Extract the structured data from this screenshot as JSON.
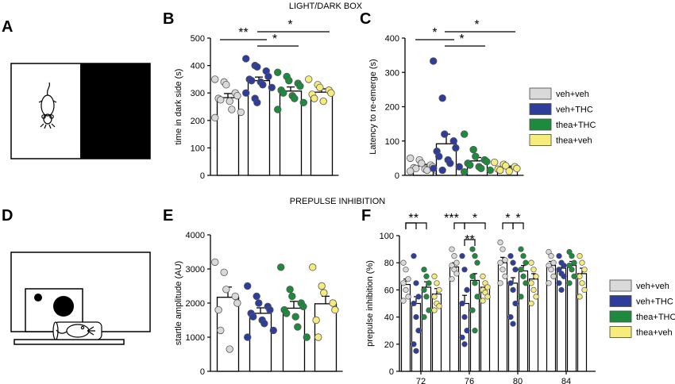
{
  "section_titles": {
    "top": "LIGHT/DARK BOX",
    "bottom": "PREPULSE INHIBITION"
  },
  "panel_labels": {
    "a": "A",
    "b": "B",
    "c": "C",
    "d": "D",
    "e": "E",
    "f": "F"
  },
  "colors": {
    "veh_veh": "#d9d9d9",
    "veh_thc": "#2e3c9c",
    "thea_thc": "#1d8a3e",
    "thea_veh": "#f5ec7d"
  },
  "legend_top": [
    "veh+veh",
    "veh+THC",
    "thea+THC",
    "thea+veh"
  ],
  "legend_bottom": [
    "veh+veh",
    "veh+THC",
    "thea+THC",
    "thea+veh"
  ],
  "chart_data": [
    {
      "panel": "B",
      "type": "bar",
      "ylabel": "time in dark side (s)",
      "ylim": [
        0,
        500
      ],
      "yticks": [
        "0",
        "100",
        "200",
        "300",
        "400",
        "500"
      ],
      "series": [
        {
          "name": "veh+veh",
          "color_key": "veh_veh",
          "mean": 283,
          "sem": 15,
          "points": [
            350,
            340,
            330,
            300,
            290,
            280,
            275,
            270,
            240,
            230,
            210
          ]
        },
        {
          "name": "veh+THC",
          "color_key": "veh_thc",
          "mean": 345,
          "sem": 13,
          "points": [
            425,
            400,
            395,
            380,
            360,
            350,
            345,
            340,
            330,
            320,
            300,
            280,
            265
          ]
        },
        {
          "name": "thea+THC",
          "color_key": "thea_thc",
          "mean": 307,
          "sem": 15,
          "points": [
            375,
            360,
            345,
            335,
            325,
            310,
            300,
            290,
            280,
            265,
            240
          ]
        },
        {
          "name": "thea+veh",
          "color_key": "thea_veh",
          "mean": 303,
          "sem": 12,
          "points": [
            350,
            330,
            320,
            310,
            300,
            295,
            280,
            270
          ]
        }
      ],
      "significance": [
        {
          "from": 0,
          "to": 1,
          "label": "**"
        },
        {
          "from": 1,
          "to": 2,
          "label": "*"
        },
        {
          "from": 1,
          "to": 3,
          "label": "*"
        }
      ]
    },
    {
      "panel": "C",
      "type": "bar",
      "ylabel": "Latency to re-emerge (s)",
      "ylim": [
        0,
        400
      ],
      "yticks": [
        "0",
        "100",
        "200",
        "300",
        "400"
      ],
      "series": [
        {
          "name": "veh+veh",
          "color_key": "veh_veh",
          "mean": 27,
          "sem": 5,
          "points": [
            50,
            45,
            35,
            30,
            25,
            22,
            20,
            18,
            15,
            15,
            12
          ]
        },
        {
          "name": "veh+THC",
          "color_key": "veh_thc",
          "mean": 92,
          "sem": 28,
          "points": [
            333,
            225,
            120,
            100,
            80,
            70,
            55,
            45,
            35,
            25,
            20,
            15
          ]
        },
        {
          "name": "thea+THC",
          "color_key": "thea_thc",
          "mean": 42,
          "sem": 10,
          "points": [
            120,
            75,
            55,
            45,
            40,
            35,
            30,
            25,
            20,
            15,
            10
          ]
        },
        {
          "name": "thea+veh",
          "color_key": "thea_veh",
          "mean": 23,
          "sem": 4,
          "points": [
            38,
            32,
            28,
            25,
            20,
            18,
            15,
            12
          ]
        }
      ],
      "significance": [
        {
          "from": 0,
          "to": 1,
          "label": "*"
        },
        {
          "from": 1,
          "to": 2,
          "label": "*"
        },
        {
          "from": 1,
          "to": 3,
          "label": "*"
        }
      ]
    },
    {
      "panel": "E",
      "type": "bar",
      "ylabel": "startle amplitude (AU)",
      "ylim": [
        0,
        4000
      ],
      "yticks": [
        "0",
        "1000",
        "2000",
        "3000",
        "4000"
      ],
      "series": [
        {
          "name": "veh+veh",
          "color_key": "veh_veh",
          "mean": 2170,
          "sem": 300,
          "points": [
            3200,
            2900,
            2400,
            2200,
            2000,
            1800,
            1200,
            650
          ]
        },
        {
          "name": "veh+THC",
          "color_key": "veh_thc",
          "mean": 1700,
          "sem": 160,
          "points": [
            2500,
            2200,
            2000,
            1900,
            1800,
            1700,
            1600,
            1500,
            1400,
            1200,
            1000
          ]
        },
        {
          "name": "thea+THC",
          "color_key": "thea_thc",
          "mean": 1850,
          "sem": 200,
          "points": [
            3050,
            2400,
            2200,
            2000,
            1900,
            1800,
            1700,
            1600,
            1300,
            1000
          ]
        },
        {
          "name": "thea+veh",
          "color_key": "thea_veh",
          "mean": 1980,
          "sem": 220,
          "points": [
            3050,
            2500,
            2300,
            2000,
            1800,
            1500,
            1000
          ]
        }
      ]
    },
    {
      "panel": "F",
      "type": "bar",
      "xlabel_ticks": [
        "72",
        "76",
        "80",
        "84"
      ],
      "ylabel": "prepulse inhibition (%)",
      "ylim": [
        0,
        100
      ],
      "yticks": [
        "0",
        "20",
        "40",
        "60",
        "80",
        "100"
      ],
      "groups": [
        {
          "x": "72",
          "means": [
            64,
            50,
            62,
            57
          ],
          "sems": [
            4,
            5,
            4,
            4
          ],
          "points": [
            [
              80,
              75,
              68,
              65,
              60,
              55,
              52
            ],
            [
              85,
              65,
              55,
              50,
              40,
              30,
              20,
              15
            ],
            [
              75,
              70,
              65,
              60,
              55,
              45,
              40
            ],
            [
              70,
              65,
              60,
              55,
              50,
              48,
              45
            ]
          ]
        },
        {
          "x": "76",
          "means": [
            77,
            50,
            67,
            62
          ],
          "sems": [
            3,
            6,
            5,
            4
          ],
          "points": [
            [
              90,
              85,
              80,
              78,
              75,
              72,
              68
            ],
            [
              85,
              75,
              60,
              50,
              40,
              30,
              25,
              20
            ],
            [
              90,
              85,
              80,
              70,
              65,
              55,
              45,
              30
            ],
            [
              70,
              65,
              62,
              60,
              58,
              55,
              52
            ]
          ]
        },
        {
          "x": "80",
          "means": [
            80,
            65,
            74,
            68
          ],
          "sems": [
            4,
            4,
            4,
            4
          ],
          "points": [
            [
              95,
              90,
              82,
              80,
              75,
              70,
              65
            ],
            [
              85,
              80,
              75,
              65,
              60,
              50,
              40,
              35
            ],
            [
              90,
              85,
              80,
              75,
              70,
              65,
              55
            ],
            [
              80,
              75,
              70,
              65,
              60,
              55,
              50
            ]
          ]
        },
        {
          "x": "84",
          "means": [
            78,
            76,
            78,
            72
          ],
          "sems": [
            3,
            3,
            3,
            4
          ],
          "points": [
            [
              88,
              85,
              80,
              78,
              75,
              70,
              65
            ],
            [
              85,
              80,
              78,
              75,
              72,
              70,
              65,
              60
            ],
            [
              88,
              85,
              80,
              78,
              75,
              70,
              65
            ],
            [
              85,
              80,
              75,
              70,
              65,
              60,
              55
            ]
          ]
        }
      ],
      "significance": [
        {
          "group": "72",
          "from": 0,
          "to": 1,
          "label": "*"
        },
        {
          "group": "72",
          "from": 0,
          "to": 2,
          "label": "*"
        },
        {
          "group": "76",
          "from": 0,
          "to": 1,
          "label": "***"
        },
        {
          "group": "76",
          "from": 1,
          "to": 3,
          "label": "*"
        },
        {
          "group": "76",
          "from": 1,
          "to": 2,
          "label": "**"
        },
        {
          "group": "80",
          "from": 0,
          "to": 1,
          "label": "*"
        },
        {
          "group": "80",
          "from": 1,
          "to": 2,
          "label": "*"
        }
      ]
    }
  ]
}
